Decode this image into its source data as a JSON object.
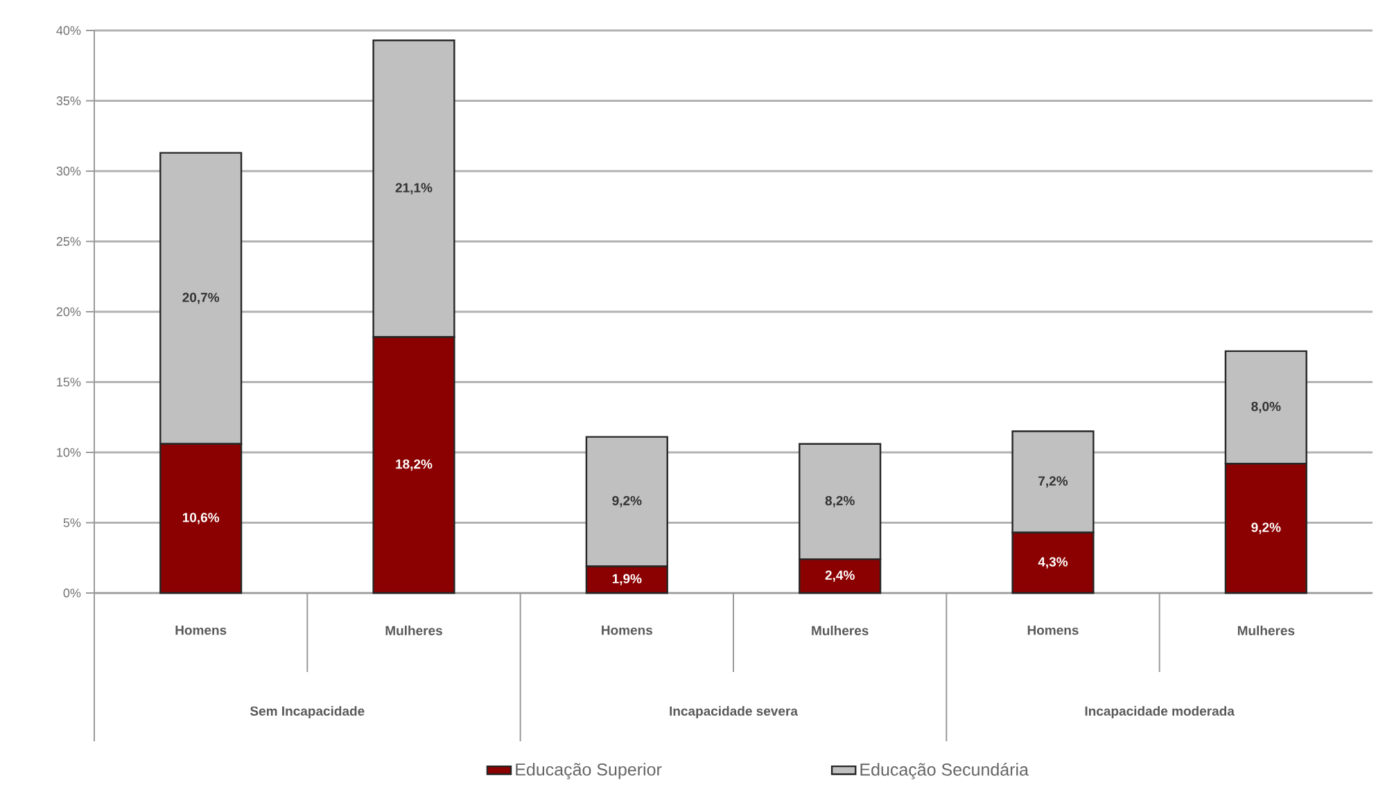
{
  "chart_data": {
    "type": "bar",
    "stacked": true,
    "categories": [
      "Homens",
      "Mulheres",
      "Homens",
      "Mulheres",
      "Homens",
      "Mulheres"
    ],
    "series": [
      {
        "name": "Educação Superior",
        "color": "#8b0000",
        "values": [
          10.6,
          18.2,
          1.9,
          2.4,
          4.3,
          9.2
        ],
        "value_labels": [
          "10,6%",
          "18,2%",
          "1,9%",
          "2,4%",
          "4,3%",
          "9,2%"
        ]
      },
      {
        "name": "Educação Secundária",
        "color": "#c0c0c0",
        "values": [
          20.7,
          21.1,
          9.2,
          8.2,
          7.2,
          8.0
        ],
        "value_labels": [
          "20,7%",
          "21,1%",
          "9,2%",
          "8,2%",
          "7,2%",
          "8,0%"
        ]
      }
    ],
    "ylim": [
      0,
      40
    ],
    "yticks": [
      {
        "value": 0,
        "label": "0%"
      },
      {
        "value": 5,
        "label": "5%"
      },
      {
        "value": 10,
        "label": "10%"
      },
      {
        "value": 15,
        "label": "15%"
      },
      {
        "value": 20,
        "label": "20%"
      },
      {
        "value": 25,
        "label": "25%"
      },
      {
        "value": 30,
        "label": "30%"
      },
      {
        "value": 35,
        "label": "35%"
      },
      {
        "value": 40,
        "label": "40%"
      }
    ],
    "grid": "y",
    "legend": "bottom",
    "annotations": [
      "Sem Incapacidade",
      "Incapacidade severa",
      "Incapacidade moderada"
    ]
  }
}
